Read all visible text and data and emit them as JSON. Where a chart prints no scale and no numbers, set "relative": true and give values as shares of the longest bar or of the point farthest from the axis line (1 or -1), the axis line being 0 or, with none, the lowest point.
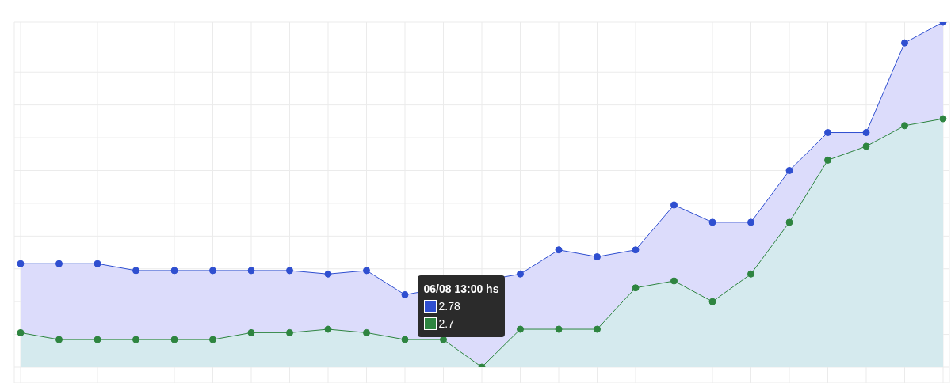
{
  "chart_data": {
    "type": "area",
    "relative": true,
    "categories": [
      null,
      null,
      null,
      null,
      null,
      null,
      null,
      null,
      null,
      null,
      null,
      null,
      null,
      null,
      null,
      null,
      null,
      null,
      null,
      null,
      null,
      null,
      null,
      null,
      null
    ],
    "series": [
      {
        "color": "#2f4fd0",
        "values": [
          0.3,
          0.3,
          0.3,
          0.28,
          0.28,
          0.28,
          0.28,
          0.28,
          0.27,
          0.28,
          0.21,
          null,
          null,
          0.27,
          0.34,
          0.32,
          0.34,
          0.47,
          0.42,
          0.42,
          0.57,
          0.68,
          0.68,
          0.94,
          1
        ]
      },
      {
        "color": "#2e8540",
        "values": [
          0.1,
          0.08,
          0.08,
          0.08,
          0.08,
          0.08,
          0.1,
          0.1,
          0.11,
          0.1,
          0.08,
          0.08,
          0,
          0.11,
          0.11,
          0.11,
          0.23,
          0.25,
          0.19,
          0.27,
          0.42,
          0.6,
          0.64,
          0.7,
          0.72
        ]
      }
    ],
    "annotations": [
      "06/08 13:00 hs",
      "2.78",
      "2.7"
    ],
    "grid": true,
    "marker": "circle",
    "line_style": "solid",
    "legend": false
  }
}
